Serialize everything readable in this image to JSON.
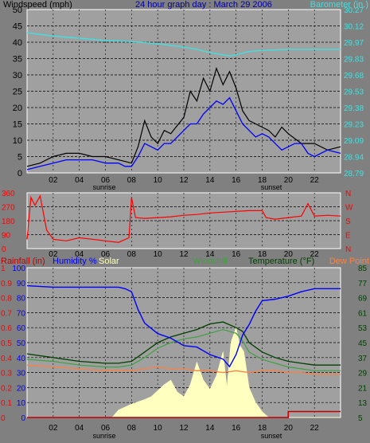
{
  "colors": {
    "bg": "#808080",
    "plot": "#a0a0a0",
    "grid": "#000000",
    "black": "#000000",
    "blue": "#0000ff",
    "cyan": "#40e0e0",
    "red": "#ff0000",
    "darkred": "#a00000",
    "darkblue": "#2020c0",
    "green": "#004000",
    "lime": "#00ff00",
    "orange": "#ff8000",
    "yellow": "#ffffc0",
    "blueline": "#0000ff",
    "chillGreen": "#208020",
    "tempGreen": "#006000",
    "dew": "#ff8040"
  },
  "chart_data": [
    {
      "type": "line",
      "title": "24 hour graph day : March 29 2006",
      "ylabel_left": "Windspeed (mph)",
      "ylabel_right": "Barometer (in.)",
      "left_ticks": [
        "50",
        "45",
        "40",
        "35",
        "30",
        "25",
        "20",
        "15",
        "10",
        "5",
        "0"
      ],
      "right_ticks": [
        "30.27",
        "30.12",
        "29.97",
        "29.83",
        "29.68",
        "29.53",
        "29.38",
        "29.23",
        "29.09",
        "28.94",
        "28.79"
      ],
      "x_ticks": [
        "02",
        "04",
        "06",
        "08",
        "10",
        "12",
        "14",
        "16",
        "18",
        "20",
        "22"
      ],
      "sunrise_label": "sunrise",
      "sunset_label": "sunset",
      "ylim": [
        0,
        50
      ],
      "barometer_ylim": [
        28.79,
        30.27
      ],
      "barometer": {
        "x": [
          0,
          2,
          4,
          6,
          8,
          10,
          12,
          13,
          14,
          15,
          15.5,
          16,
          17,
          18,
          20,
          22,
          24
        ],
        "y": [
          30.06,
          30.03,
          30.01,
          29.99,
          29.98,
          29.96,
          29.93,
          29.91,
          29.88,
          29.86,
          29.85,
          29.86,
          29.89,
          29.9,
          29.91,
          29.91,
          29.91
        ]
      },
      "wind_average": {
        "x": [
          0,
          1,
          2,
          3,
          4,
          5,
          6,
          7,
          7.5,
          8,
          8.5,
          9,
          9.5,
          10,
          10.5,
          11,
          11.5,
          12,
          12.5,
          13,
          13.5,
          14,
          14.5,
          15,
          15.5,
          16,
          16.5,
          17,
          17.5,
          18,
          18.5,
          19,
          19.5,
          20,
          20.5,
          21,
          21.5,
          22,
          23,
          24
        ],
        "y": [
          1,
          2,
          3,
          4,
          4,
          4,
          3,
          3,
          2,
          2,
          5,
          9,
          8,
          7,
          9,
          9,
          11,
          13,
          15,
          15,
          18,
          20,
          22,
          21,
          23,
          19,
          15,
          13,
          11,
          12,
          11,
          9,
          7,
          8,
          9,
          9,
          6,
          5,
          7,
          6
        ]
      },
      "wind_gust": {
        "x": [
          0,
          1,
          2,
          3,
          4,
          5,
          6,
          7,
          8,
          8.5,
          9,
          9.5,
          10,
          10.5,
          11,
          12,
          12.5,
          13,
          13.5,
          14,
          14.5,
          15,
          15.5,
          16,
          16.5,
          17,
          17.5,
          18,
          18.5,
          19,
          19.5,
          20,
          21,
          22,
          23,
          24
        ],
        "y": [
          2,
          3,
          5,
          6,
          6,
          5,
          5,
          4,
          3,
          8,
          16,
          11,
          9,
          13,
          12,
          17,
          25,
          22,
          29,
          25,
          32,
          27,
          31,
          26,
          19,
          16,
          15,
          14,
          13,
          11,
          14,
          12,
          9,
          9,
          7,
          8
        ]
      }
    },
    {
      "type": "line",
      "left_ticks": [
        "360",
        "270",
        "180",
        "90",
        "0"
      ],
      "right_ticks": [
        "N",
        "W",
        "S",
        "E",
        "N"
      ],
      "x_ticks": [
        "02",
        "04",
        "06",
        "08",
        "10",
        "12",
        "14",
        "16",
        "18",
        "20",
        "22"
      ],
      "ylim": [
        0,
        360
      ],
      "wind_direction": {
        "x": [
          0,
          0.3,
          0.6,
          1,
          1.5,
          2,
          3,
          4,
          5,
          6,
          7,
          7.8,
          8,
          8.3,
          9,
          10,
          11,
          12,
          13,
          14,
          15,
          16,
          17,
          18,
          18.3,
          19,
          20,
          21,
          21.5,
          22,
          23,
          24
        ],
        "y": [
          60,
          330,
          280,
          340,
          120,
          60,
          50,
          70,
          60,
          50,
          40,
          70,
          330,
          200,
          195,
          200,
          205,
          215,
          220,
          230,
          235,
          240,
          245,
          245,
          200,
          190,
          200,
          210,
          290,
          210,
          215,
          210
        ]
      }
    },
    {
      "type": "line",
      "legend": [
        "Rainfall (in)",
        "Humidity %",
        "Solar",
        "Windchill",
        "Temperature (°F)",
        "Dew Point"
      ],
      "left_ticks_rain": [
        "1",
        "0.9",
        "0.8",
        "0.7",
        "0.6",
        "0.5",
        "0.4",
        "0.3",
        "0.2",
        "0.1",
        "0"
      ],
      "left_ticks_hum": [
        "100",
        "90",
        "80",
        "70",
        "60",
        "50",
        "40",
        "30",
        "20",
        "10",
        "0"
      ],
      "right_ticks": [
        "85",
        "77",
        "69",
        "61",
        "53",
        "45",
        "37",
        "29",
        "21",
        "13",
        "5"
      ],
      "x_ticks": [
        "02",
        "04",
        "06",
        "08",
        "10",
        "12",
        "14",
        "16",
        "18",
        "20",
        "22"
      ],
      "sunrise_label": "sunrise",
      "sunset_label": "sunset",
      "temp_ylim": [
        5,
        85
      ],
      "humidity": {
        "x": [
          0,
          2,
          4,
          6,
          7,
          7.5,
          8,
          8.5,
          9,
          10,
          11,
          12,
          13,
          14,
          15,
          15.5,
          16,
          16.5,
          17,
          17.5,
          18,
          19,
          20,
          21,
          22,
          24
        ],
        "y": [
          88,
          87,
          87,
          87,
          87,
          86,
          84,
          72,
          63,
          56,
          53,
          48,
          47,
          42,
          39,
          34,
          42,
          55,
          62,
          71,
          78,
          79,
          81,
          84,
          86,
          86
        ]
      },
      "temperature": {
        "x": [
          0,
          2,
          4,
          6,
          7,
          8,
          9,
          10,
          11,
          12,
          13,
          14,
          15,
          16,
          16.5,
          17,
          18,
          19,
          20,
          21,
          22,
          24
        ],
        "y": [
          39,
          37,
          35,
          34,
          34,
          35,
          40,
          45,
          48,
          50,
          52,
          55,
          56,
          53,
          51,
          45,
          40,
          37,
          35,
          34,
          33,
          33
        ]
      },
      "windchill": {
        "x": [
          0,
          2,
          4,
          6,
          7,
          8,
          9,
          10,
          11,
          12,
          13,
          14,
          15,
          16,
          16.5,
          17,
          18,
          19,
          20,
          21,
          22,
          24
        ],
        "y": [
          36,
          35,
          33,
          32,
          32,
          33,
          37,
          42,
          45,
          47,
          48,
          50,
          52,
          50,
          46,
          40,
          36,
          34,
          32,
          31,
          30,
          30
        ]
      },
      "dew_point": {
        "x": [
          0,
          2,
          4,
          6,
          7,
          8,
          9,
          10,
          11,
          12,
          13,
          14,
          15,
          16,
          17,
          18,
          19,
          20,
          21,
          22,
          24
        ],
        "y": [
          33,
          32,
          31,
          30,
          30,
          30,
          31,
          32,
          31,
          31,
          30,
          30,
          29,
          30,
          29,
          30,
          30,
          29,
          29,
          28,
          28
        ]
      },
      "solar": {
        "x": [
          0,
          6.5,
          7,
          8,
          9,
          9.5,
          10,
          10.5,
          11,
          11.5,
          12,
          12.5,
          13,
          13.5,
          14,
          14.5,
          15,
          15.3,
          15.6,
          16,
          16.3,
          16.6,
          17,
          17.5,
          18,
          18.5,
          24
        ],
        "y": [
          0,
          0,
          5,
          9,
          12,
          14,
          18,
          22,
          25,
          17,
          14,
          22,
          37,
          25,
          19,
          28,
          44,
          20,
          50,
          60,
          48,
          44,
          20,
          10,
          4,
          0,
          0
        ]
      },
      "rainfall": {
        "x": [
          0,
          17,
          19,
          20,
          24
        ],
        "y": [
          0,
          0,
          0,
          0.04,
          0.04
        ]
      }
    }
  ]
}
